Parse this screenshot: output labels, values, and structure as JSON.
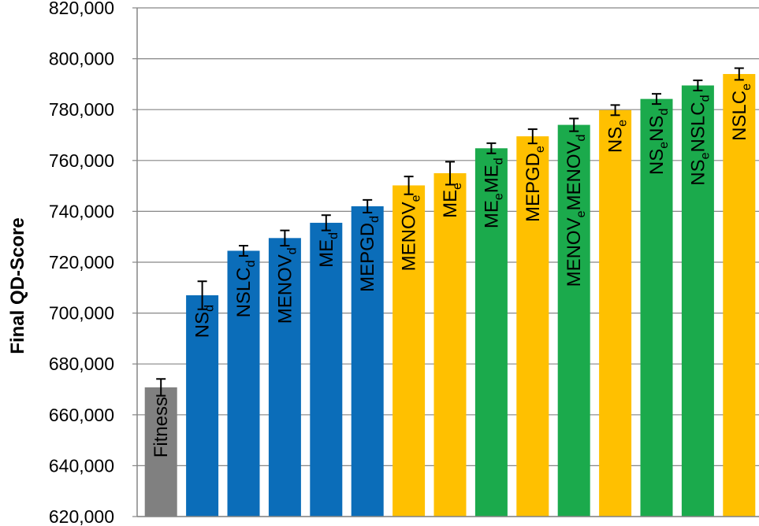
{
  "chart_data": {
    "type": "bar",
    "ylabel": "Final QD-Score",
    "ylim": [
      620000,
      820000
    ],
    "ytick_step": 20000,
    "yticks": [
      "620,000",
      "640,000",
      "660,000",
      "680,000",
      "700,000",
      "720,000",
      "740,000",
      "760,000",
      "780,000",
      "800,000",
      "820,000"
    ],
    "colors": {
      "fitness": "#808080",
      "d": "#0B6DB9",
      "e": "#FFC000",
      "ed": "#1BAA4C"
    },
    "bars": [
      {
        "label": "Fitness",
        "parts": [
          {
            "t": "Fitness",
            "s": ""
          }
        ],
        "value": 670800,
        "err": 3300,
        "group": "fitness"
      },
      {
        "label": "NSd",
        "parts": [
          {
            "t": "NS",
            "s": ""
          },
          {
            "t": "d",
            "s": "sub"
          }
        ],
        "value": 707000,
        "err": 5500,
        "group": "d"
      },
      {
        "label": "NSLCd",
        "parts": [
          {
            "t": "NSLC",
            "s": ""
          },
          {
            "t": "d",
            "s": "sub"
          }
        ],
        "value": 724500,
        "err": 2000,
        "group": "d"
      },
      {
        "label": "MENOVd",
        "parts": [
          {
            "t": "MENOV",
            "s": ""
          },
          {
            "t": "d",
            "s": "sub"
          }
        ],
        "value": 729500,
        "err": 3000,
        "group": "d"
      },
      {
        "label": "MEd",
        "parts": [
          {
            "t": "ME",
            "s": ""
          },
          {
            "t": "d",
            "s": "sub"
          }
        ],
        "value": 735500,
        "err": 3000,
        "group": "d"
      },
      {
        "label": "MEPGDd",
        "parts": [
          {
            "t": "MEPGD",
            "s": ""
          },
          {
            "t": "d",
            "s": "sub"
          }
        ],
        "value": 742000,
        "err": 2500,
        "group": "d"
      },
      {
        "label": "MENOVe",
        "parts": [
          {
            "t": "MENOV",
            "s": ""
          },
          {
            "t": "e",
            "s": "sub"
          }
        ],
        "value": 750200,
        "err": 3500,
        "group": "e"
      },
      {
        "label": "MEe",
        "parts": [
          {
            "t": "ME",
            "s": ""
          },
          {
            "t": "e",
            "s": "sub"
          }
        ],
        "value": 755000,
        "err": 4500,
        "group": "e"
      },
      {
        "label": "MEeMEd",
        "parts": [
          {
            "t": "ME",
            "s": ""
          },
          {
            "t": "e",
            "s": "sub"
          },
          {
            "t": "ME",
            "s": ""
          },
          {
            "t": "d",
            "s": "sub"
          }
        ],
        "value": 764800,
        "err": 2000,
        "group": "ed"
      },
      {
        "label": "MEPGDe",
        "parts": [
          {
            "t": "MEPGD",
            "s": ""
          },
          {
            "t": "e",
            "s": "sub"
          }
        ],
        "value": 769500,
        "err": 2800,
        "group": "e"
      },
      {
        "label": "MENOVeMENOVd",
        "parts": [
          {
            "t": "MENOV",
            "s": ""
          },
          {
            "t": "e",
            "s": "sub"
          },
          {
            "t": "MENOV",
            "s": ""
          },
          {
            "t": "d",
            "s": "sub"
          }
        ],
        "value": 774000,
        "err": 2500,
        "group": "ed"
      },
      {
        "label": "NSe",
        "parts": [
          {
            "t": "NS",
            "s": ""
          },
          {
            "t": "e",
            "s": "sub"
          }
        ],
        "value": 779800,
        "err": 2000,
        "group": "e"
      },
      {
        "label": "NSeNSd",
        "parts": [
          {
            "t": "NS",
            "s": ""
          },
          {
            "t": "e",
            "s": "sub"
          },
          {
            "t": "NS",
            "s": ""
          },
          {
            "t": "d",
            "s": "sub"
          }
        ],
        "value": 784200,
        "err": 2000,
        "group": "ed"
      },
      {
        "label": "NSeNSLCd",
        "parts": [
          {
            "t": "NS",
            "s": ""
          },
          {
            "t": "e",
            "s": "sub"
          },
          {
            "t": "NSLC",
            "s": ""
          },
          {
            "t": "d",
            "s": "sub"
          }
        ],
        "value": 789500,
        "err": 2000,
        "group": "ed"
      },
      {
        "label": "NSLCe",
        "parts": [
          {
            "t": "NSLC",
            "s": ""
          },
          {
            "t": "e",
            "s": "sub"
          }
        ],
        "value": 794000,
        "err": 2300,
        "group": "e"
      }
    ]
  }
}
